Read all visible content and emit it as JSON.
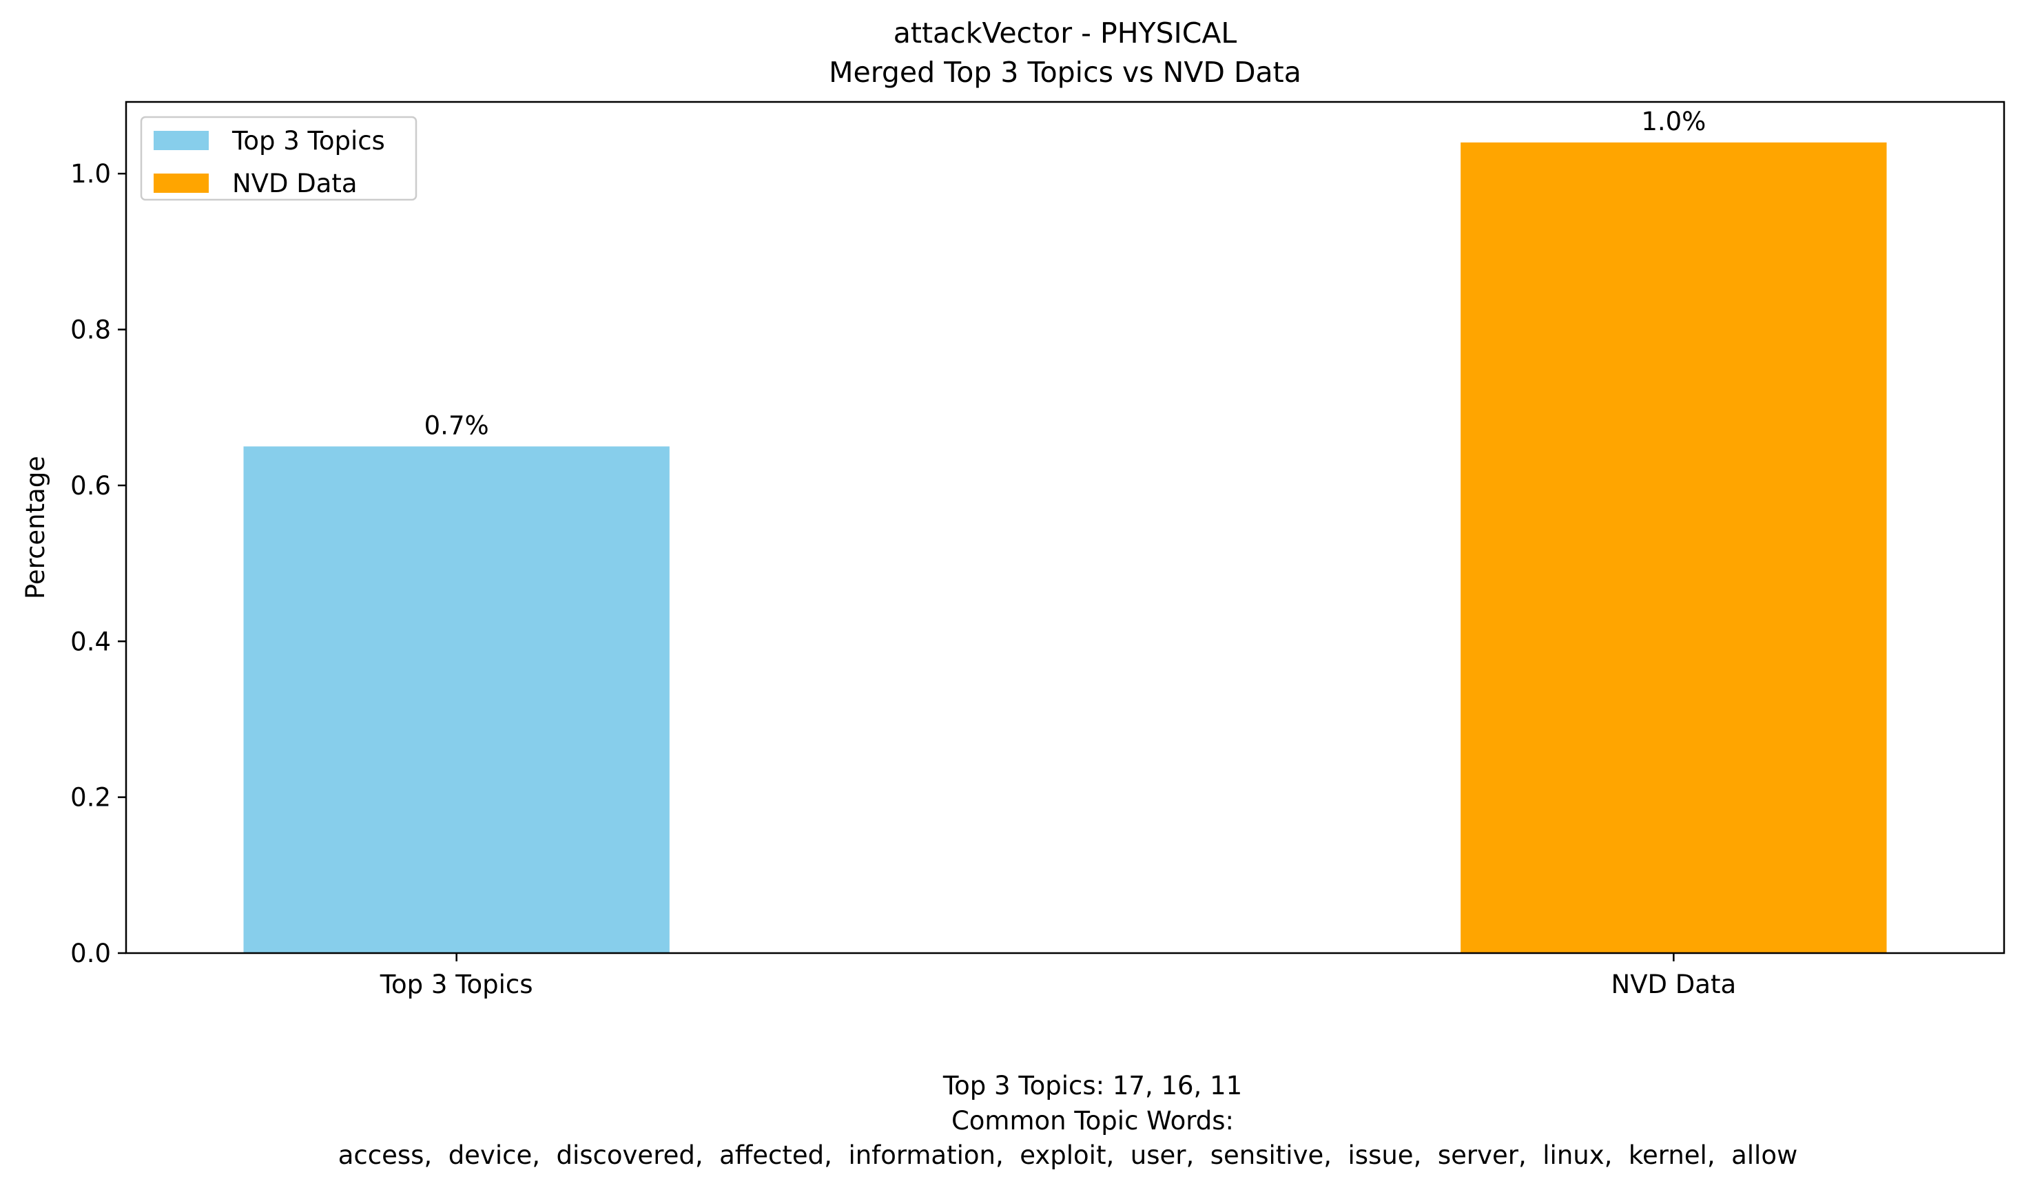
{
  "chart_data": {
    "type": "bar",
    "title": "attackVector - PHYSICAL",
    "subtitle": "Merged Top 3 Topics vs NVD Data",
    "xlabel": "",
    "ylabel": "Percentage",
    "categories": [
      "Top 3 Topics",
      "NVD Data"
    ],
    "values": [
      0.65,
      1.04
    ],
    "bar_labels": [
      "0.7%",
      "1.0%"
    ],
    "colors": [
      "#87ceeb",
      "#ffa500"
    ],
    "ylim": [
      0,
      1.092
    ],
    "yticks": [
      0.0,
      0.2,
      0.4,
      0.6,
      0.8,
      1.0
    ],
    "ytick_labels": [
      "0.0",
      "0.2",
      "0.4",
      "0.6",
      "0.8",
      "1.0"
    ],
    "legend": {
      "placement": "top-left",
      "entries": [
        {
          "label": "Top 3 Topics",
          "color": "#87ceeb"
        },
        {
          "label": "NVD Data",
          "color": "#ffa500"
        }
      ]
    },
    "grid": false
  },
  "footer": {
    "line1": "Top 3 Topics: 17, 16, 11",
    "line2": "Common Topic Words:",
    "line3": "access,  device,  discovered,  affected,  information,  exploit,  user,  sensitive,  issue,  server,  linux,  kernel,  allow"
  }
}
